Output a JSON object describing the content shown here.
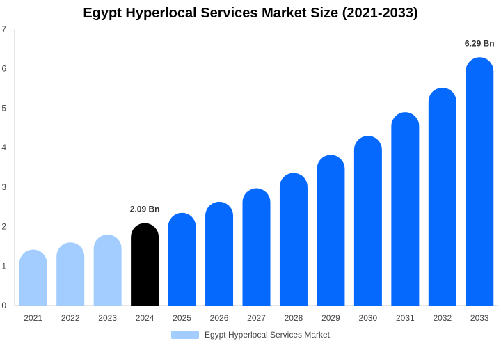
{
  "chart_data": {
    "type": "bar",
    "title": "Egypt Hyperlocal Services Market Size (2021-2033)",
    "categories": [
      "2021",
      "2022",
      "2023",
      "2024",
      "2025",
      "2026",
      "2027",
      "2028",
      "2029",
      "2030",
      "2031",
      "2032",
      "2033"
    ],
    "series": [
      {
        "name": "Egypt Hyperlocal Services Market",
        "values": [
          1.42,
          1.6,
          1.8,
          2.09,
          2.35,
          2.63,
          2.97,
          3.36,
          3.82,
          4.3,
          4.9,
          5.52,
          6.29
        ]
      }
    ],
    "data_labels": [
      {
        "category": "2024",
        "text": "2.09 Bn"
      },
      {
        "category": "2033",
        "text": "6.29 Bn"
      }
    ],
    "bar_colors": {
      "historical": "#a3cdff",
      "base_year": "#000000",
      "forecast": "#0569fe"
    },
    "historical_categories": [
      "2021",
      "2022",
      "2023"
    ],
    "base_year_category": "2024",
    "ylim": [
      0,
      7
    ],
    "yticks": [
      0,
      1,
      2,
      3,
      4,
      5,
      6,
      7
    ],
    "grid": false,
    "legend_position": "bottom",
    "legend_color": "#a3cdff",
    "axis_color": "#cccccc"
  }
}
